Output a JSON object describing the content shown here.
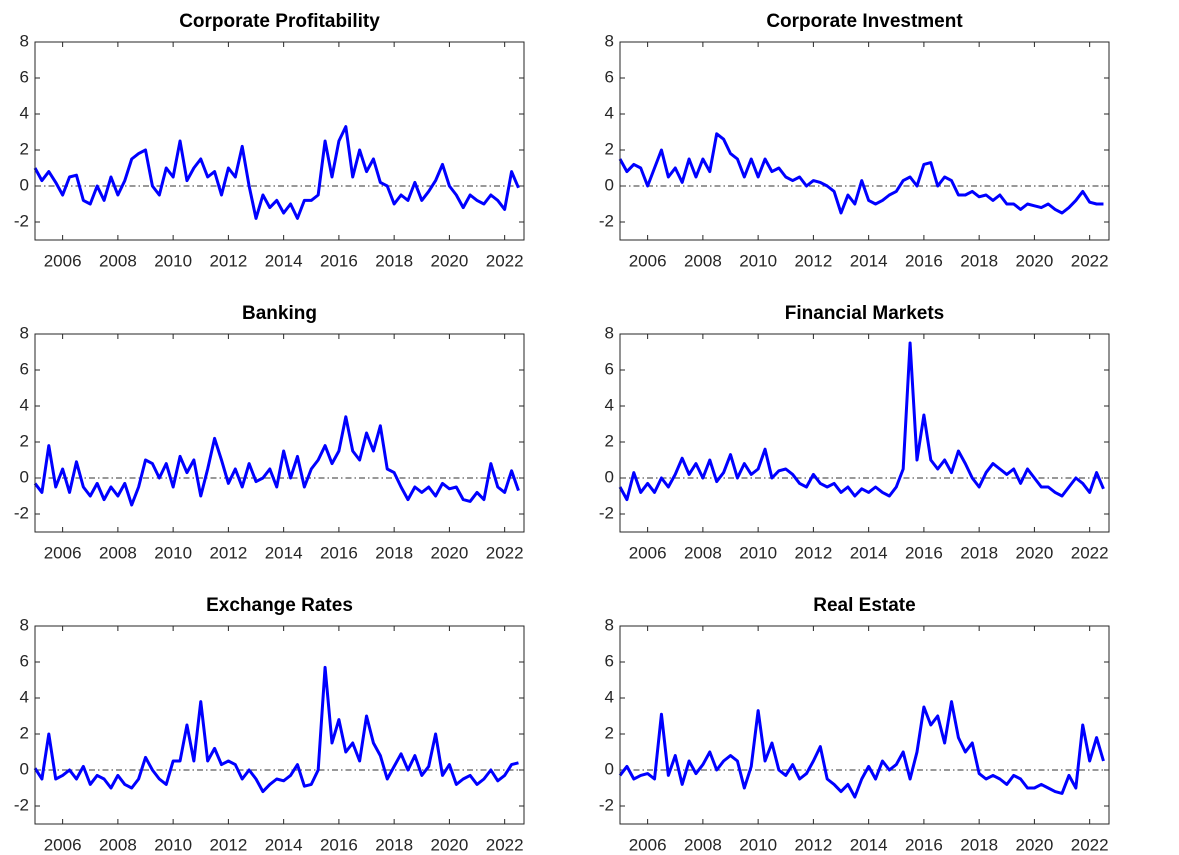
{
  "chart_data": [
    {
      "type": "line",
      "title": "Corporate Profitability",
      "color": "#0000ff",
      "hline": 0,
      "x": [
        2005,
        2005.25,
        2005.5,
        2005.75,
        2006,
        2006.25,
        2006.5,
        2006.75,
        2007,
        2007.25,
        2007.5,
        2007.75,
        2008,
        2008.25,
        2008.5,
        2008.75,
        2009,
        2009.25,
        2009.5,
        2009.75,
        2010,
        2010.25,
        2010.5,
        2010.75,
        2011,
        2011.25,
        2011.5,
        2011.75,
        2012,
        2012.25,
        2012.5,
        2012.75,
        2013,
        2013.25,
        2013.5,
        2013.75,
        2014,
        2014.25,
        2014.5,
        2014.75,
        2015,
        2015.25,
        2015.5,
        2015.75,
        2016,
        2016.25,
        2016.5,
        2016.75,
        2017,
        2017.25,
        2017.5,
        2017.75,
        2018,
        2018.25,
        2018.5,
        2018.75,
        2019,
        2019.25,
        2019.5,
        2019.75,
        2020,
        2020.25,
        2020.5,
        2020.75,
        2021,
        2021.25,
        2021.5,
        2021.75,
        2022,
        2022.25,
        2022.5
      ],
      "values": [
        1.0,
        0.3,
        0.8,
        0.2,
        -0.5,
        0.5,
        0.6,
        -0.8,
        -1.0,
        0.0,
        -0.8,
        0.5,
        -0.5,
        0.3,
        1.5,
        1.8,
        2.0,
        0.0,
        -0.5,
        1.0,
        0.5,
        2.5,
        0.3,
        1.0,
        1.5,
        0.5,
        0.8,
        -0.5,
        1.0,
        0.5,
        2.2,
        0.0,
        -1.8,
        -0.5,
        -1.2,
        -0.8,
        -1.5,
        -1.0,
        -1.8,
        -0.8,
        -0.8,
        -0.5,
        2.5,
        0.5,
        2.5,
        3.3,
        0.5,
        2.0,
        0.8,
        1.5,
        0.2,
        0.0,
        -1.0,
        -0.5,
        -0.8,
        0.2,
        -0.8,
        -0.3,
        0.3,
        1.2,
        0.0,
        -0.5,
        -1.2,
        -0.5,
        -0.8,
        -1.0,
        -0.5,
        -0.8,
        -1.3,
        0.8,
        -0.1
      ],
      "xlim": [
        2005,
        2022.7
      ],
      "ylim": [
        -3,
        8
      ],
      "xticks": [
        2006,
        2008,
        2010,
        2012,
        2014,
        2016,
        2018,
        2020,
        2022
      ],
      "yticks": [
        -2,
        0,
        2,
        4,
        6,
        8
      ]
    },
    {
      "type": "line",
      "title": "Corporate Investment",
      "color": "#0000ff",
      "hline": 0,
      "x": [
        2005,
        2005.25,
        2005.5,
        2005.75,
        2006,
        2006.25,
        2006.5,
        2006.75,
        2007,
        2007.25,
        2007.5,
        2007.75,
        2008,
        2008.25,
        2008.5,
        2008.75,
        2009,
        2009.25,
        2009.5,
        2009.75,
        2010,
        2010.25,
        2010.5,
        2010.75,
        2011,
        2011.25,
        2011.5,
        2011.75,
        2012,
        2012.25,
        2012.5,
        2012.75,
        2013,
        2013.25,
        2013.5,
        2013.75,
        2014,
        2014.25,
        2014.5,
        2014.75,
        2015,
        2015.25,
        2015.5,
        2015.75,
        2016,
        2016.25,
        2016.5,
        2016.75,
        2017,
        2017.25,
        2017.5,
        2017.75,
        2018,
        2018.25,
        2018.5,
        2018.75,
        2019,
        2019.25,
        2019.5,
        2019.75,
        2020,
        2020.25,
        2020.5,
        2020.75,
        2021,
        2021.25,
        2021.5,
        2021.75,
        2022,
        2022.25,
        2022.5
      ],
      "values": [
        1.5,
        0.8,
        1.2,
        1.0,
        0.0,
        1.0,
        2.0,
        0.5,
        1.0,
        0.2,
        1.5,
        0.5,
        1.5,
        0.8,
        2.9,
        2.6,
        1.8,
        1.5,
        0.5,
        1.5,
        0.5,
        1.5,
        0.8,
        1.0,
        0.5,
        0.3,
        0.5,
        0.0,
        0.3,
        0.2,
        0.0,
        -0.3,
        -1.5,
        -0.5,
        -1.0,
        0.3,
        -0.8,
        -1.0,
        -0.8,
        -0.5,
        -0.3,
        0.3,
        0.5,
        0.0,
        1.2,
        1.3,
        0.0,
        0.5,
        0.3,
        -0.5,
        -0.5,
        -0.3,
        -0.6,
        -0.5,
        -0.8,
        -0.5,
        -1.0,
        -1.0,
        -1.3,
        -1.0,
        -1.1,
        -1.2,
        -1.0,
        -1.3,
        -1.5,
        -1.2,
        -0.8,
        -0.3,
        -0.9,
        -1.0,
        -1.0
      ],
      "xlim": [
        2005,
        2022.7
      ],
      "ylim": [
        -3,
        8
      ],
      "xticks": [
        2006,
        2008,
        2010,
        2012,
        2014,
        2016,
        2018,
        2020,
        2022
      ],
      "yticks": [
        -2,
        0,
        2,
        4,
        6,
        8
      ]
    },
    {
      "type": "line",
      "title": "Banking",
      "color": "#0000ff",
      "hline": 0,
      "x": [
        2005,
        2005.25,
        2005.5,
        2005.75,
        2006,
        2006.25,
        2006.5,
        2006.75,
        2007,
        2007.25,
        2007.5,
        2007.75,
        2008,
        2008.25,
        2008.5,
        2008.75,
        2009,
        2009.25,
        2009.5,
        2009.75,
        2010,
        2010.25,
        2010.5,
        2010.75,
        2011,
        2011.25,
        2011.5,
        2011.75,
        2012,
        2012.25,
        2012.5,
        2012.75,
        2013,
        2013.25,
        2013.5,
        2013.75,
        2014,
        2014.25,
        2014.5,
        2014.75,
        2015,
        2015.25,
        2015.5,
        2015.75,
        2016,
        2016.25,
        2016.5,
        2016.75,
        2017,
        2017.25,
        2017.5,
        2017.75,
        2018,
        2018.25,
        2018.5,
        2018.75,
        2019,
        2019.25,
        2019.5,
        2019.75,
        2020,
        2020.25,
        2020.5,
        2020.75,
        2021,
        2021.25,
        2021.5,
        2021.75,
        2022,
        2022.25,
        2022.5
      ],
      "values": [
        -0.3,
        -0.8,
        1.8,
        -0.5,
        0.5,
        -0.8,
        0.9,
        -0.5,
        -1.0,
        -0.3,
        -1.2,
        -0.5,
        -1.0,
        -0.3,
        -1.5,
        -0.5,
        1.0,
        0.8,
        0.0,
        0.8,
        -0.5,
        1.2,
        0.3,
        1.0,
        -1.0,
        0.5,
        2.2,
        1.0,
        -0.3,
        0.5,
        -0.5,
        0.8,
        -0.2,
        0.0,
        0.5,
        -0.5,
        1.5,
        0.0,
        1.2,
        -0.5,
        0.5,
        1.0,
        1.8,
        0.8,
        1.5,
        3.4,
        1.5,
        1.0,
        2.5,
        1.5,
        2.9,
        0.5,
        0.3,
        -0.5,
        -1.2,
        -0.5,
        -0.8,
        -0.5,
        -1.0,
        -0.3,
        -0.6,
        -0.5,
        -1.2,
        -1.3,
        -0.8,
        -1.2,
        0.8,
        -0.5,
        -0.8,
        0.4,
        -0.7
      ],
      "xlim": [
        2005,
        2022.7
      ],
      "ylim": [
        -3,
        8
      ],
      "xticks": [
        2006,
        2008,
        2010,
        2012,
        2014,
        2016,
        2018,
        2020,
        2022
      ],
      "yticks": [
        -2,
        0,
        2,
        4,
        6,
        8
      ]
    },
    {
      "type": "line",
      "title": "Financial Markets",
      "color": "#0000ff",
      "hline": 0,
      "x": [
        2005,
        2005.25,
        2005.5,
        2005.75,
        2006,
        2006.25,
        2006.5,
        2006.75,
        2007,
        2007.25,
        2007.5,
        2007.75,
        2008,
        2008.25,
        2008.5,
        2008.75,
        2009,
        2009.25,
        2009.5,
        2009.75,
        2010,
        2010.25,
        2010.5,
        2010.75,
        2011,
        2011.25,
        2011.5,
        2011.75,
        2012,
        2012.25,
        2012.5,
        2012.75,
        2013,
        2013.25,
        2013.5,
        2013.75,
        2014,
        2014.25,
        2014.5,
        2014.75,
        2015,
        2015.25,
        2015.5,
        2015.75,
        2016,
        2016.25,
        2016.5,
        2016.75,
        2017,
        2017.25,
        2017.5,
        2017.75,
        2018,
        2018.25,
        2018.5,
        2018.75,
        2019,
        2019.25,
        2019.5,
        2019.75,
        2020,
        2020.25,
        2020.5,
        2020.75,
        2021,
        2021.25,
        2021.5,
        2021.75,
        2022,
        2022.25,
        2022.5
      ],
      "values": [
        -0.5,
        -1.2,
        0.3,
        -0.8,
        -0.3,
        -0.8,
        0.0,
        -0.5,
        0.2,
        1.1,
        0.2,
        0.8,
        0.0,
        1.0,
        -0.2,
        0.3,
        1.3,
        0.0,
        0.8,
        0.2,
        0.5,
        1.6,
        0.0,
        0.4,
        0.5,
        0.2,
        -0.3,
        -0.5,
        0.2,
        -0.3,
        -0.5,
        -0.3,
        -0.8,
        -0.5,
        -1.0,
        -0.6,
        -0.8,
        -0.5,
        -0.8,
        -1.0,
        -0.5,
        0.5,
        7.5,
        1.0,
        3.5,
        1.0,
        0.5,
        1.0,
        0.3,
        1.5,
        0.8,
        0.0,
        -0.5,
        0.3,
        0.8,
        0.5,
        0.2,
        0.5,
        -0.3,
        0.5,
        0.0,
        -0.5,
        -0.5,
        -0.8,
        -1.0,
        -0.5,
        0.0,
        -0.3,
        -0.8,
        0.3,
        -0.6
      ],
      "xlim": [
        2005,
        2022.7
      ],
      "ylim": [
        -3,
        8
      ],
      "xticks": [
        2006,
        2008,
        2010,
        2012,
        2014,
        2016,
        2018,
        2020,
        2022
      ],
      "yticks": [
        -2,
        0,
        2,
        4,
        6,
        8
      ]
    },
    {
      "type": "line",
      "title": "Exchange Rates",
      "color": "#0000ff",
      "hline": 0,
      "x": [
        2005,
        2005.25,
        2005.5,
        2005.75,
        2006,
        2006.25,
        2006.5,
        2006.75,
        2007,
        2007.25,
        2007.5,
        2007.75,
        2008,
        2008.25,
        2008.5,
        2008.75,
        2009,
        2009.25,
        2009.5,
        2009.75,
        2010,
        2010.25,
        2010.5,
        2010.75,
        2011,
        2011.25,
        2011.5,
        2011.75,
        2012,
        2012.25,
        2012.5,
        2012.75,
        2013,
        2013.25,
        2013.5,
        2013.75,
        2014,
        2014.25,
        2014.5,
        2014.75,
        2015,
        2015.25,
        2015.5,
        2015.75,
        2016,
        2016.25,
        2016.5,
        2016.75,
        2017,
        2017.25,
        2017.5,
        2017.75,
        2018,
        2018.25,
        2018.5,
        2018.75,
        2019,
        2019.25,
        2019.5,
        2019.75,
        2020,
        2020.25,
        2020.5,
        2020.75,
        2021,
        2021.25,
        2021.5,
        2021.75,
        2022,
        2022.25,
        2022.5
      ],
      "values": [
        0.1,
        -0.5,
        2.0,
        -0.5,
        -0.3,
        0.0,
        -0.5,
        0.2,
        -0.8,
        -0.3,
        -0.5,
        -1.0,
        -0.3,
        -0.8,
        -1.0,
        -0.5,
        0.7,
        0.0,
        -0.5,
        -0.8,
        0.5,
        0.5,
        2.5,
        0.5,
        3.8,
        0.5,
        1.2,
        0.3,
        0.5,
        0.3,
        -0.5,
        0.0,
        -0.5,
        -1.2,
        -0.8,
        -0.5,
        -0.6,
        -0.3,
        0.3,
        -0.9,
        -0.8,
        0.0,
        5.7,
        1.5,
        2.8,
        1.0,
        1.5,
        0.5,
        3.0,
        1.5,
        0.8,
        -0.5,
        0.2,
        0.9,
        0.0,
        0.8,
        -0.3,
        0.2,
        2.0,
        -0.3,
        0.3,
        -0.8,
        -0.5,
        -0.3,
        -0.8,
        -0.5,
        0.0,
        -0.6,
        -0.3,
        0.3,
        0.4
      ],
      "xlim": [
        2005,
        2022.7
      ],
      "ylim": [
        -3,
        8
      ],
      "xticks": [
        2006,
        2008,
        2010,
        2012,
        2014,
        2016,
        2018,
        2020,
        2022
      ],
      "yticks": [
        -2,
        0,
        2,
        4,
        6,
        8
      ]
    },
    {
      "type": "line",
      "title": "Real Estate",
      "color": "#0000ff",
      "hline": 0,
      "x": [
        2005,
        2005.25,
        2005.5,
        2005.75,
        2006,
        2006.25,
        2006.5,
        2006.75,
        2007,
        2007.25,
        2007.5,
        2007.75,
        2008,
        2008.25,
        2008.5,
        2008.75,
        2009,
        2009.25,
        2009.5,
        2009.75,
        2010,
        2010.25,
        2010.5,
        2010.75,
        2011,
        2011.25,
        2011.5,
        2011.75,
        2012,
        2012.25,
        2012.5,
        2012.75,
        2013,
        2013.25,
        2013.5,
        2013.75,
        2014,
        2014.25,
        2014.5,
        2014.75,
        2015,
        2015.25,
        2015.5,
        2015.75,
        2016,
        2016.25,
        2016.5,
        2016.75,
        2017,
        2017.25,
        2017.5,
        2017.75,
        2018,
        2018.25,
        2018.5,
        2018.75,
        2019,
        2019.25,
        2019.5,
        2019.75,
        2020,
        2020.25,
        2020.5,
        2020.75,
        2021,
        2021.25,
        2021.5,
        2021.75,
        2022,
        2022.25,
        2022.5
      ],
      "values": [
        -0.3,
        0.2,
        -0.5,
        -0.3,
        -0.2,
        -0.5,
        3.1,
        -0.3,
        0.8,
        -0.8,
        0.5,
        -0.2,
        0.3,
        1.0,
        0.0,
        0.5,
        0.8,
        0.5,
        -1.0,
        0.2,
        3.3,
        0.5,
        1.5,
        0.0,
        -0.3,
        0.3,
        -0.5,
        -0.2,
        0.5,
        1.3,
        -0.5,
        -0.8,
        -1.2,
        -0.8,
        -1.5,
        -0.5,
        0.2,
        -0.5,
        0.5,
        0.0,
        0.3,
        1.0,
        -0.5,
        1.0,
        3.5,
        2.5,
        3.0,
        1.5,
        3.8,
        1.8,
        1.0,
        1.5,
        -0.2,
        -0.5,
        -0.3,
        -0.5,
        -0.8,
        -0.3,
        -0.5,
        -1.0,
        -1.0,
        -0.8,
        -1.0,
        -1.2,
        -1.3,
        -0.3,
        -1.0,
        2.5,
        0.5,
        1.8,
        0.5
      ],
      "xlim": [
        2005,
        2022.7
      ],
      "ylim": [
        -3,
        8
      ],
      "xticks": [
        2006,
        2008,
        2010,
        2012,
        2014,
        2016,
        2018,
        2020,
        2022
      ],
      "yticks": [
        -2,
        0,
        2,
        4,
        6,
        8
      ]
    }
  ]
}
